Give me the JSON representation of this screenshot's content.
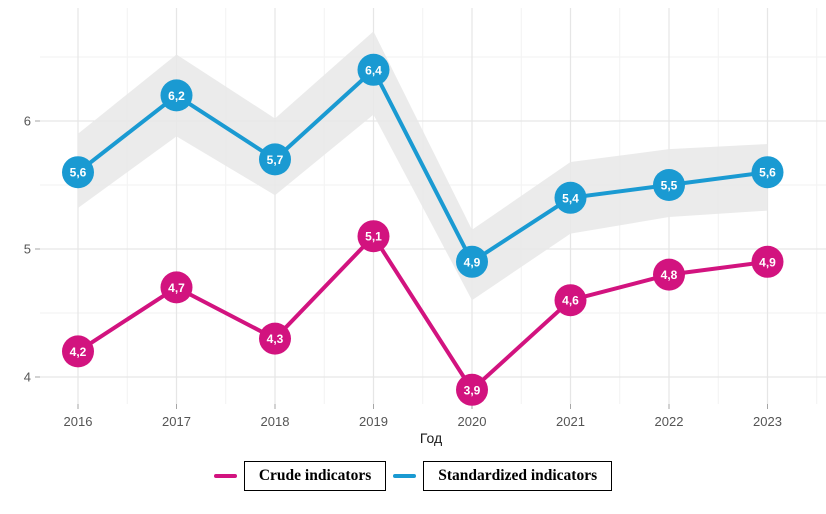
{
  "chart_data": {
    "type": "line",
    "x": [
      2016,
      2017,
      2018,
      2019,
      2020,
      2021,
      2022,
      2023
    ],
    "x_tick_labels": [
      "2016",
      "2017",
      "2018",
      "2019",
      "2020",
      "2021",
      "2022",
      "2023"
    ],
    "xlabel": "Год",
    "ylabel": "",
    "ylim": [
      3.8,
      6.9
    ],
    "y_ticks": [
      4,
      5,
      6
    ],
    "y_tick_labels": [
      "4",
      "5",
      "6"
    ],
    "y_minor_ticks": [
      4.5,
      5.5,
      6.5
    ],
    "grid": "major and minor gridlines, light gray on white panel",
    "legend_position": "bottom-center",
    "decimal_separator": ",",
    "series": [
      {
        "name": "Crude indicators",
        "color": "#d2137f",
        "values": [
          4.2,
          4.7,
          4.3,
          5.1,
          3.9,
          4.6,
          4.8,
          4.9
        ],
        "point_labels": [
          "4,2",
          "4,7",
          "4,3",
          "5,1",
          "3,9",
          "4,6",
          "4,8",
          "4,9"
        ]
      },
      {
        "name": "Standardized indicators",
        "color": "#1a9ad2",
        "values": [
          5.6,
          6.2,
          5.7,
          6.4,
          4.9,
          5.4,
          5.5,
          5.6
        ],
        "point_labels": [
          "5,6",
          "6,2",
          "5,7",
          "6,4",
          "4,9",
          "5,4",
          "5,5",
          "5,6"
        ],
        "band_lower_estimate": [
          5.32,
          5.88,
          5.42,
          6.05,
          4.6,
          5.12,
          5.25,
          5.3
        ],
        "band_upper_estimate": [
          5.9,
          6.52,
          6.02,
          6.7,
          5.15,
          5.68,
          5.78,
          5.82
        ],
        "band_color": "#e7e7e7"
      }
    ],
    "colors": {
      "grid_major": "#e6e6e6",
      "grid_minor": "#f2f2f2",
      "axis_tick": "#a6a6a6",
      "tick_label": "#555555",
      "point_label_text": "#ffffff"
    }
  }
}
